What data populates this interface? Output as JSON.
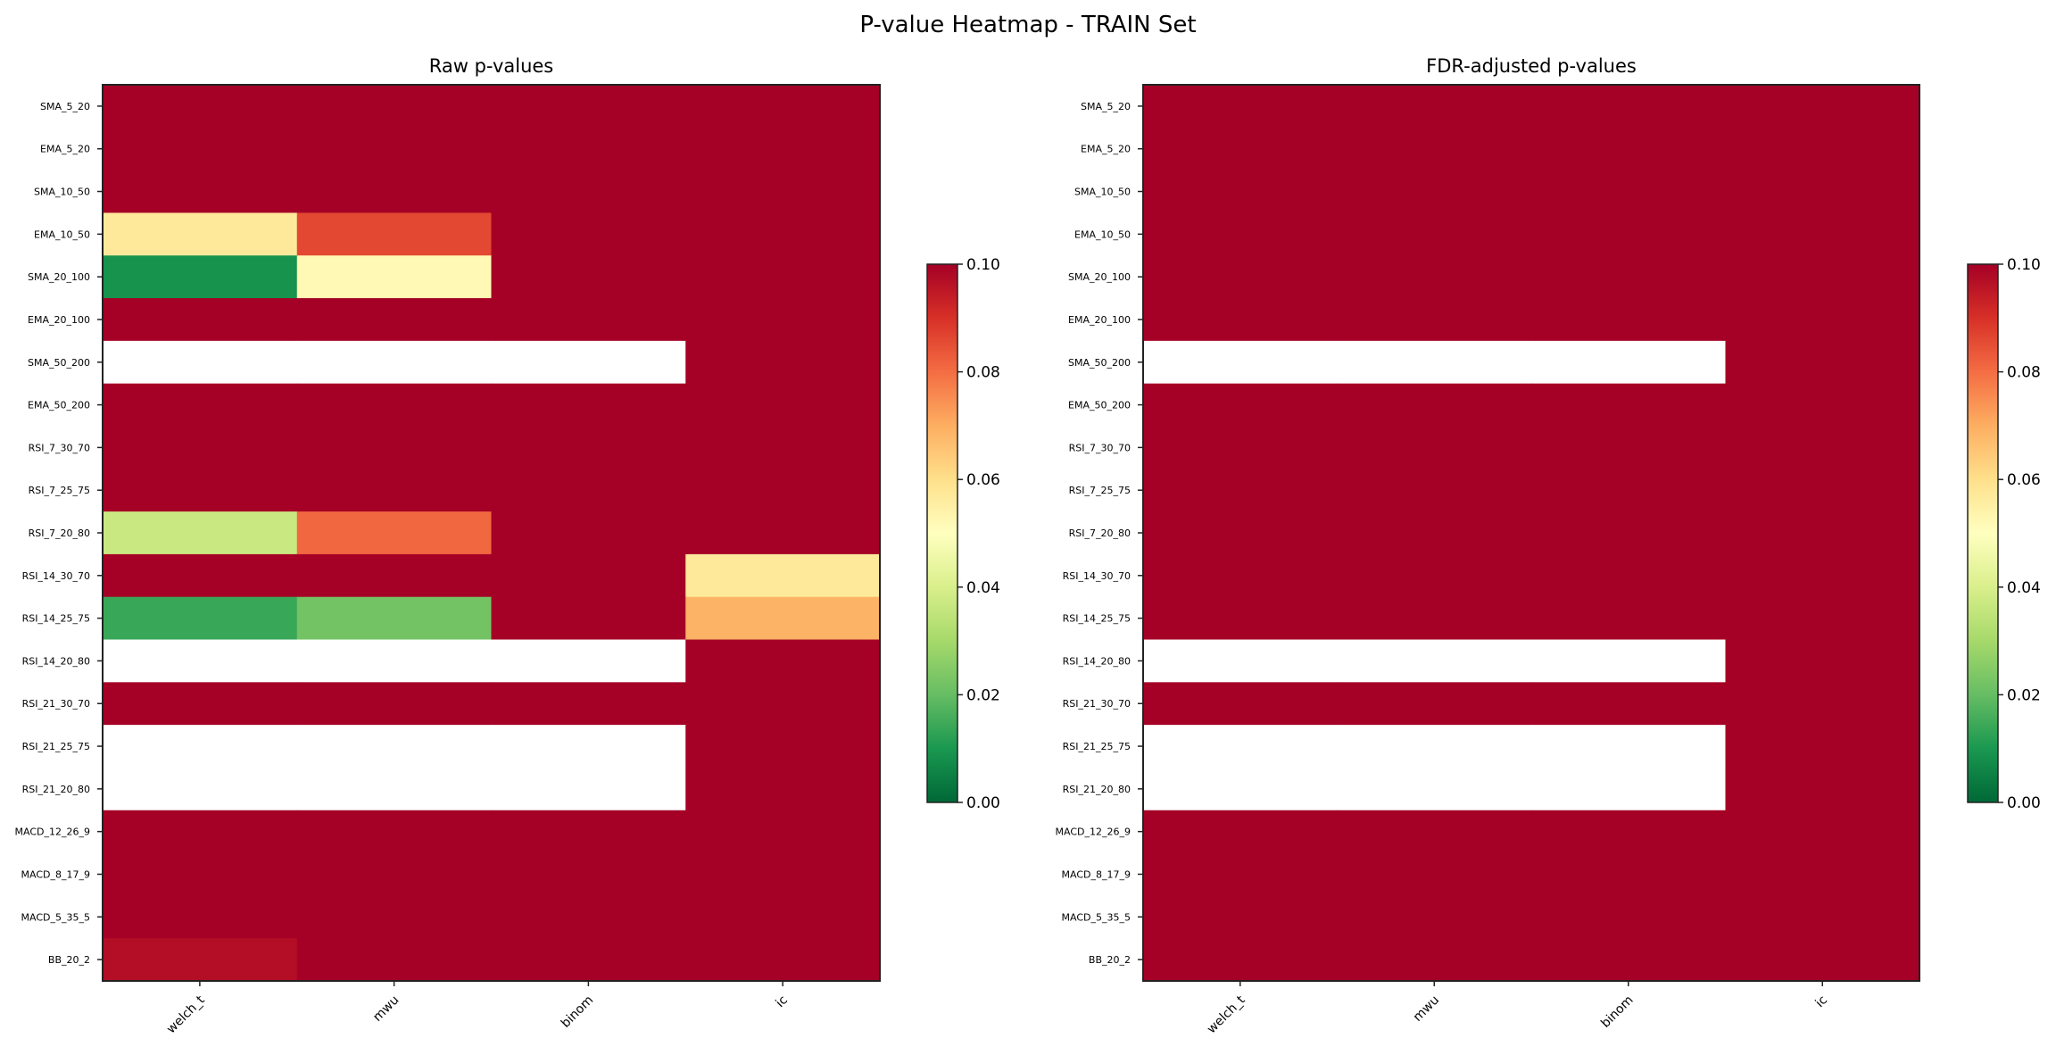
{
  "chart_data": {
    "suptitle": "P-value Heatmap - TRAIN Set",
    "colormap": "RdYlGn_r",
    "colormap_stops": [
      "#006837",
      "#1a9850",
      "#66bd63",
      "#a6d96a",
      "#d9ef8b",
      "#ffffbf",
      "#fee08b",
      "#fdae61",
      "#f46d43",
      "#d73027",
      "#a50026"
    ],
    "nan_color": "#ffffff",
    "panels": [
      {
        "type": "heatmap",
        "title": "Raw p-values",
        "rows": [
          "SMA_5_20",
          "EMA_5_20",
          "SMA_10_50",
          "EMA_10_50",
          "SMA_20_100",
          "EMA_20_100",
          "SMA_50_200",
          "EMA_50_200",
          "RSI_7_30_70",
          "RSI_7_25_75",
          "RSI_7_20_80",
          "RSI_14_30_70",
          "RSI_14_25_75",
          "RSI_14_20_80",
          "RSI_21_30_70",
          "RSI_21_25_75",
          "RSI_21_20_80",
          "MACD_12_26_9",
          "MACD_8_17_9",
          "MACD_5_35_5",
          "BB_20_2"
        ],
        "columns": [
          "welch_t",
          "mwu",
          "binom",
          "ic"
        ],
        "values": [
          [
            0.1,
            0.1,
            0.1,
            0.1
          ],
          [
            0.1,
            0.1,
            0.1,
            0.1
          ],
          [
            0.1,
            0.1,
            0.1,
            0.1
          ],
          [
            0.057,
            0.086,
            0.1,
            0.1
          ],
          [
            0.009,
            0.052,
            0.1,
            0.1
          ],
          [
            0.1,
            0.1,
            0.1,
            0.1
          ],
          [
            null,
            null,
            null,
            0.1
          ],
          [
            0.1,
            0.1,
            0.1,
            0.1
          ],
          [
            0.1,
            0.1,
            0.1,
            0.1
          ],
          [
            0.1,
            0.1,
            0.1,
            0.1
          ],
          [
            0.037,
            0.081,
            0.1,
            0.1
          ],
          [
            0.1,
            0.1,
            0.1,
            0.057
          ],
          [
            0.014,
            0.022,
            0.1,
            0.069
          ],
          [
            null,
            null,
            null,
            0.1
          ],
          [
            0.1,
            0.1,
            0.1,
            0.1
          ],
          [
            null,
            null,
            null,
            0.1
          ],
          [
            null,
            null,
            null,
            0.1
          ],
          [
            0.1,
            0.1,
            0.1,
            0.1
          ],
          [
            0.1,
            0.1,
            0.1,
            0.1
          ],
          [
            0.1,
            0.1,
            0.1,
            0.1
          ],
          [
            0.097,
            0.1,
            0.1,
            0.1
          ]
        ],
        "vmin": 0,
        "vmax": 0.1,
        "colorbar_ticks": [
          "0.00",
          "0.02",
          "0.04",
          "0.06",
          "0.08",
          "0.10"
        ]
      },
      {
        "type": "heatmap",
        "title": "FDR-adjusted p-values",
        "rows": [
          "SMA_5_20",
          "EMA_5_20",
          "SMA_10_50",
          "EMA_10_50",
          "SMA_20_100",
          "EMA_20_100",
          "SMA_50_200",
          "EMA_50_200",
          "RSI_7_30_70",
          "RSI_7_25_75",
          "RSI_7_20_80",
          "RSI_14_30_70",
          "RSI_14_25_75",
          "RSI_14_20_80",
          "RSI_21_30_70",
          "RSI_21_25_75",
          "RSI_21_20_80",
          "MACD_12_26_9",
          "MACD_8_17_9",
          "MACD_5_35_5",
          "BB_20_2"
        ],
        "columns": [
          "welch_t",
          "mwu",
          "binom",
          "ic"
        ],
        "values": [
          [
            0.1,
            0.1,
            0.1,
            0.1
          ],
          [
            0.1,
            0.1,
            0.1,
            0.1
          ],
          [
            0.1,
            0.1,
            0.1,
            0.1
          ],
          [
            0.1,
            0.1,
            0.1,
            0.1
          ],
          [
            0.1,
            0.1,
            0.1,
            0.1
          ],
          [
            0.1,
            0.1,
            0.1,
            0.1
          ],
          [
            null,
            null,
            null,
            0.1
          ],
          [
            0.1,
            0.1,
            0.1,
            0.1
          ],
          [
            0.1,
            0.1,
            0.1,
            0.1
          ],
          [
            0.1,
            0.1,
            0.1,
            0.1
          ],
          [
            0.1,
            0.1,
            0.1,
            0.1
          ],
          [
            0.1,
            0.1,
            0.1,
            0.1
          ],
          [
            0.1,
            0.1,
            0.1,
            0.1
          ],
          [
            null,
            null,
            null,
            0.1
          ],
          [
            0.1,
            0.1,
            0.1,
            0.1
          ],
          [
            null,
            null,
            null,
            0.1
          ],
          [
            null,
            null,
            null,
            0.1
          ],
          [
            0.1,
            0.1,
            0.1,
            0.1
          ],
          [
            0.1,
            0.1,
            0.1,
            0.1
          ],
          [
            0.1,
            0.1,
            0.1,
            0.1
          ],
          [
            0.1,
            0.1,
            0.1,
            0.1
          ]
        ],
        "vmin": 0,
        "vmax": 0.1,
        "colorbar_ticks": [
          "0.00",
          "0.02",
          "0.04",
          "0.06",
          "0.08",
          "0.10"
        ]
      }
    ]
  }
}
